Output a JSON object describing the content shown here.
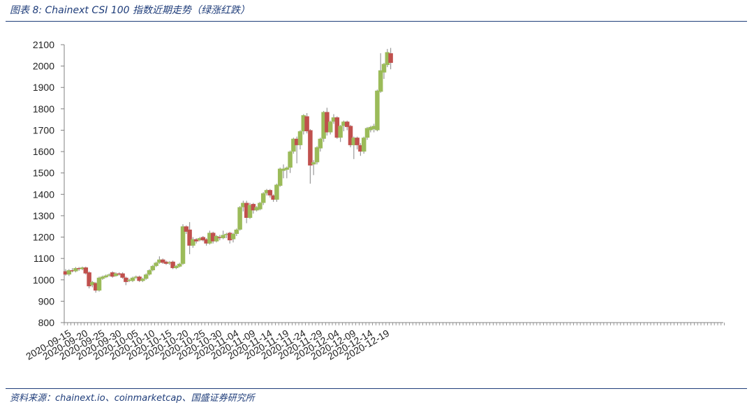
{
  "figure": {
    "title": "图表 8:  Chainext CSI 100 指数近期走势（绿涨红跌）",
    "source": "资料来源：chainext.io、coinmarketcap、国盛证券研究所"
  },
  "colors": {
    "up": "#9bbb59",
    "down": "#c0504d",
    "wick": "#999999",
    "axis": "#808080",
    "rule": "#1f3d7a"
  },
  "chart_data": {
    "type": "candlestick",
    "title": "",
    "ylim": [
      800,
      2100
    ],
    "yticks": [
      800,
      900,
      1000,
      1100,
      1200,
      1300,
      1400,
      1500,
      1600,
      1700,
      1800,
      1900,
      2000,
      2100
    ],
    "x_tick_labels": [
      "2020-09-15",
      "2020-09-20",
      "2020-09-25",
      "2020-09-30",
      "2020-10-05",
      "2020-10-10",
      "2020-10-15",
      "2020-10-20",
      "2020-10-25",
      "2020-10-30",
      "2020-11-04",
      "2020-11-09",
      "2020-11-14",
      "2020-11-19",
      "2020-11-24",
      "2020-11-29",
      "2020-12-04",
      "2020-12-09",
      "2020-12-14",
      "2020-12-19"
    ],
    "grid": false,
    "legend": "none",
    "candles": [
      {
        "date": "2020-09-14",
        "open": 1040,
        "close": 1025,
        "high": 1050,
        "low": 1020
      },
      {
        "date": "2020-09-15",
        "open": 1025,
        "close": 1045,
        "high": 1050,
        "low": 1018
      },
      {
        "date": "2020-09-16",
        "open": 1045,
        "close": 1040,
        "high": 1055,
        "low": 1035
      },
      {
        "date": "2020-09-17",
        "open": 1040,
        "close": 1055,
        "high": 1060,
        "low": 1035
      },
      {
        "date": "2020-09-18",
        "open": 1055,
        "close": 1050,
        "high": 1060,
        "low": 1042
      },
      {
        "date": "2020-09-19",
        "open": 1050,
        "close": 1058,
        "high": 1062,
        "low": 1045
      },
      {
        "date": "2020-09-20",
        "open": 1058,
        "close": 1030,
        "high": 1062,
        "low": 1025
      },
      {
        "date": "2020-09-21",
        "open": 1035,
        "close": 970,
        "high": 1040,
        "low": 960
      },
      {
        "date": "2020-09-22",
        "open": 975,
        "close": 990,
        "high": 995,
        "low": 965
      },
      {
        "date": "2020-09-23",
        "open": 985,
        "close": 950,
        "high": 990,
        "low": 940
      },
      {
        "date": "2020-09-24",
        "open": 950,
        "close": 1010,
        "high": 1015,
        "low": 945
      },
      {
        "date": "2020-09-25",
        "open": 1005,
        "close": 1015,
        "high": 1020,
        "low": 1000
      },
      {
        "date": "2020-09-26",
        "open": 1012,
        "close": 1020,
        "high": 1025,
        "low": 1008
      },
      {
        "date": "2020-09-27",
        "open": 1020,
        "close": 1025,
        "high": 1030,
        "low": 1015
      },
      {
        "date": "2020-09-28",
        "open": 1035,
        "close": 1015,
        "high": 1040,
        "low": 1010
      },
      {
        "date": "2020-09-29",
        "open": 1018,
        "close": 1030,
        "high": 1035,
        "low": 1015
      },
      {
        "date": "2020-09-30",
        "open": 1030,
        "close": 1025,
        "high": 1035,
        "low": 1020
      },
      {
        "date": "2020-10-01",
        "open": 1030,
        "close": 1010,
        "high": 1035,
        "low": 1005
      },
      {
        "date": "2020-10-02",
        "open": 1010,
        "close": 990,
        "high": 1015,
        "low": 975
      },
      {
        "date": "2020-10-03",
        "open": 995,
        "close": 1000,
        "high": 1005,
        "low": 990
      },
      {
        "date": "2020-10-04",
        "open": 995,
        "close": 1010,
        "high": 1015,
        "low": 990
      },
      {
        "date": "2020-10-05",
        "open": 1010,
        "close": 1015,
        "high": 1020,
        "low": 1005
      },
      {
        "date": "2020-10-06",
        "open": 1015,
        "close": 995,
        "high": 1020,
        "low": 990
      },
      {
        "date": "2020-10-07",
        "open": 995,
        "close": 1005,
        "high": 1010,
        "low": 990
      },
      {
        "date": "2020-10-08",
        "open": 1005,
        "close": 1025,
        "high": 1030,
        "low": 1000
      },
      {
        "date": "2020-10-09",
        "open": 1025,
        "close": 1045,
        "high": 1050,
        "low": 1020
      },
      {
        "date": "2020-10-10",
        "open": 1045,
        "close": 1065,
        "high": 1070,
        "low": 1040
      },
      {
        "date": "2020-10-11",
        "open": 1065,
        "close": 1080,
        "high": 1085,
        "low": 1060
      },
      {
        "date": "2020-10-12",
        "open": 1080,
        "close": 1095,
        "high": 1110,
        "low": 1075
      },
      {
        "date": "2020-10-13",
        "open": 1095,
        "close": 1080,
        "high": 1100,
        "low": 1075
      },
      {
        "date": "2020-10-14",
        "open": 1085,
        "close": 1075,
        "high": 1090,
        "low": 1070
      },
      {
        "date": "2020-10-15",
        "open": 1078,
        "close": 1082,
        "high": 1088,
        "low": 1070
      },
      {
        "date": "2020-10-16",
        "open": 1085,
        "close": 1055,
        "high": 1090,
        "low": 1050
      },
      {
        "date": "2020-10-17",
        "open": 1055,
        "close": 1065,
        "high": 1070,
        "low": 1050
      },
      {
        "date": "2020-10-18",
        "open": 1062,
        "close": 1075,
        "high": 1080,
        "low": 1058
      },
      {
        "date": "2020-10-19",
        "open": 1075,
        "close": 1250,
        "high": 1260,
        "low": 1070
      },
      {
        "date": "2020-10-20",
        "open": 1250,
        "close": 1225,
        "high": 1255,
        "low": 1215
      },
      {
        "date": "2020-10-21",
        "open": 1235,
        "close": 1160,
        "high": 1270,
        "low": 1120
      },
      {
        "date": "2020-10-22",
        "open": 1160,
        "close": 1190,
        "high": 1200,
        "low": 1150
      },
      {
        "date": "2020-10-23",
        "open": 1190,
        "close": 1180,
        "high": 1195,
        "low": 1170
      },
      {
        "date": "2020-10-24",
        "open": 1185,
        "close": 1195,
        "high": 1200,
        "low": 1180
      },
      {
        "date": "2020-10-25",
        "open": 1200,
        "close": 1185,
        "high": 1205,
        "low": 1180
      },
      {
        "date": "2020-10-26",
        "open": 1190,
        "close": 1170,
        "high": 1195,
        "low": 1160
      },
      {
        "date": "2020-10-27",
        "open": 1170,
        "close": 1220,
        "high": 1230,
        "low": 1165
      },
      {
        "date": "2020-10-28",
        "open": 1220,
        "close": 1180,
        "high": 1225,
        "low": 1170
      },
      {
        "date": "2020-10-29",
        "open": 1180,
        "close": 1205,
        "high": 1210,
        "low": 1175
      },
      {
        "date": "2020-10-30",
        "open": 1200,
        "close": 1195,
        "high": 1210,
        "low": 1185
      },
      {
        "date": "2020-10-31",
        "open": 1195,
        "close": 1210,
        "high": 1230,
        "low": 1190
      },
      {
        "date": "2020-11-01",
        "open": 1210,
        "close": 1215,
        "high": 1220,
        "low": 1195
      },
      {
        "date": "2020-11-02",
        "open": 1220,
        "close": 1185,
        "high": 1225,
        "low": 1170
      },
      {
        "date": "2020-11-03",
        "open": 1190,
        "close": 1215,
        "high": 1220,
        "low": 1175
      },
      {
        "date": "2020-11-04",
        "open": 1215,
        "close": 1235,
        "high": 1240,
        "low": 1205
      },
      {
        "date": "2020-11-05",
        "open": 1235,
        "close": 1340,
        "high": 1345,
        "low": 1230
      },
      {
        "date": "2020-11-06",
        "open": 1340,
        "close": 1360,
        "high": 1370,
        "low": 1320
      },
      {
        "date": "2020-11-07",
        "open": 1360,
        "close": 1290,
        "high": 1370,
        "low": 1265
      },
      {
        "date": "2020-11-08",
        "open": 1290,
        "close": 1350,
        "high": 1360,
        "low": 1285
      },
      {
        "date": "2020-11-09",
        "open": 1355,
        "close": 1325,
        "high": 1360,
        "low": 1310
      },
      {
        "date": "2020-11-10",
        "open": 1325,
        "close": 1340,
        "high": 1345,
        "low": 1320
      },
      {
        "date": "2020-11-11",
        "open": 1330,
        "close": 1360,
        "high": 1365,
        "low": 1325
      },
      {
        "date": "2020-11-12",
        "open": 1360,
        "close": 1405,
        "high": 1410,
        "low": 1350
      },
      {
        "date": "2020-11-13",
        "open": 1405,
        "close": 1420,
        "high": 1425,
        "low": 1395
      },
      {
        "date": "2020-11-14",
        "open": 1420,
        "close": 1395,
        "high": 1425,
        "low": 1385
      },
      {
        "date": "2020-11-15",
        "open": 1395,
        "close": 1375,
        "high": 1400,
        "low": 1365
      },
      {
        "date": "2020-11-16",
        "open": 1375,
        "close": 1445,
        "high": 1450,
        "low": 1365
      },
      {
        "date": "2020-11-17",
        "open": 1440,
        "close": 1520,
        "high": 1525,
        "low": 1435
      },
      {
        "date": "2020-11-18",
        "open": 1510,
        "close": 1520,
        "high": 1540,
        "low": 1475
      },
      {
        "date": "2020-11-19",
        "open": 1515,
        "close": 1525,
        "high": 1530,
        "low": 1475
      },
      {
        "date": "2020-11-20",
        "open": 1525,
        "close": 1600,
        "high": 1605,
        "low": 1500
      },
      {
        "date": "2020-11-21",
        "open": 1600,
        "close": 1660,
        "high": 1665,
        "low": 1590
      },
      {
        "date": "2020-11-22",
        "open": 1660,
        "close": 1630,
        "high": 1670,
        "low": 1545
      },
      {
        "date": "2020-11-23",
        "open": 1630,
        "close": 1695,
        "high": 1700,
        "low": 1610
      },
      {
        "date": "2020-11-24",
        "open": 1695,
        "close": 1770,
        "high": 1775,
        "low": 1680
      },
      {
        "date": "2020-11-25",
        "open": 1765,
        "close": 1695,
        "high": 1780,
        "low": 1685
      },
      {
        "date": "2020-11-26",
        "open": 1700,
        "close": 1535,
        "high": 1705,
        "low": 1450
      },
      {
        "date": "2020-11-27",
        "open": 1540,
        "close": 1550,
        "high": 1560,
        "low": 1490
      },
      {
        "date": "2020-11-28",
        "open": 1550,
        "close": 1620,
        "high": 1625,
        "low": 1540
      },
      {
        "date": "2020-11-29",
        "open": 1615,
        "close": 1660,
        "high": 1665,
        "low": 1600
      },
      {
        "date": "2020-11-30",
        "open": 1660,
        "close": 1785,
        "high": 1790,
        "low": 1645
      },
      {
        "date": "2020-12-01",
        "open": 1785,
        "close": 1690,
        "high": 1805,
        "low": 1675
      },
      {
        "date": "2020-12-02",
        "open": 1690,
        "close": 1740,
        "high": 1745,
        "low": 1680
      },
      {
        "date": "2020-12-03",
        "open": 1740,
        "close": 1760,
        "high": 1775,
        "low": 1730
      },
      {
        "date": "2020-12-04",
        "open": 1760,
        "close": 1665,
        "high": 1765,
        "low": 1660
      },
      {
        "date": "2020-12-05",
        "open": 1665,
        "close": 1720,
        "high": 1725,
        "low": 1645
      },
      {
        "date": "2020-12-06",
        "open": 1720,
        "close": 1740,
        "high": 1745,
        "low": 1695
      },
      {
        "date": "2020-12-07",
        "open": 1740,
        "close": 1715,
        "high": 1745,
        "low": 1700
      },
      {
        "date": "2020-12-08",
        "open": 1720,
        "close": 1630,
        "high": 1725,
        "low": 1620
      },
      {
        "date": "2020-12-09",
        "open": 1630,
        "close": 1665,
        "high": 1670,
        "low": 1565
      },
      {
        "date": "2020-12-10",
        "open": 1665,
        "close": 1630,
        "high": 1670,
        "low": 1610
      },
      {
        "date": "2020-12-11",
        "open": 1630,
        "close": 1600,
        "high": 1640,
        "low": 1580
      },
      {
        "date": "2020-12-12",
        "open": 1600,
        "close": 1665,
        "high": 1670,
        "low": 1590
      },
      {
        "date": "2020-12-13",
        "open": 1665,
        "close": 1710,
        "high": 1715,
        "low": 1655
      },
      {
        "date": "2020-12-14",
        "open": 1700,
        "close": 1715,
        "high": 1720,
        "low": 1690
      },
      {
        "date": "2020-12-15",
        "open": 1705,
        "close": 1720,
        "high": 1730,
        "low": 1690
      },
      {
        "date": "2020-12-16",
        "open": 1700,
        "close": 1885,
        "high": 1890,
        "low": 1695
      },
      {
        "date": "2020-12-17",
        "open": 1880,
        "close": 1980,
        "high": 2060,
        "low": 1875
      },
      {
        "date": "2020-12-18",
        "open": 1970,
        "close": 2010,
        "high": 2015,
        "low": 1940
      },
      {
        "date": "2020-12-19",
        "open": 2005,
        "close": 2065,
        "high": 2080,
        "low": 1995
      },
      {
        "date": "2020-12-20",
        "open": 2060,
        "close": 2015,
        "high": 2085,
        "low": 1985
      }
    ]
  }
}
